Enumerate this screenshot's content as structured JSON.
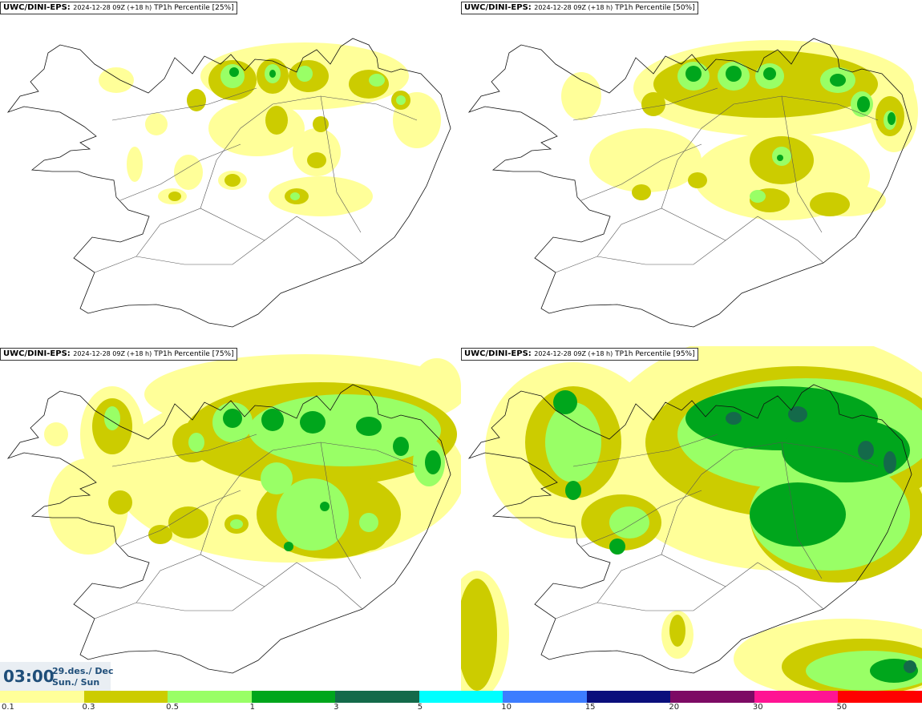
{
  "panels": [
    {
      "model": "UWC/DINI-EPS",
      "run": "2024-12-28 09Z (+18 h)",
      "param": "TP1h Percentile [25%]",
      "percentile": 25
    },
    {
      "model": "UWC/DINI-EPS",
      "run": "2024-12-28 09Z (+18 h)",
      "param": "TP1h Percentile [50%]",
      "percentile": 50
    },
    {
      "model": "UWC/DINI-EPS",
      "run": "2024-12-28 09Z (+18 h)",
      "param": "TP1h Percentile [75%]",
      "percentile": 75
    },
    {
      "model": "UWC/DINI-EPS",
      "run": "2024-12-28 09Z (+18 h)",
      "param": "TP1h Percentile [95%]",
      "percentile": 95
    }
  ],
  "valid_time": {
    "time": "03:00",
    "date_line1": "29.des./ Dec",
    "date_line2": "Sun./ Sun"
  },
  "legend": {
    "labels": [
      "0.1",
      "0.3",
      "0.5",
      "1",
      "3",
      "5",
      "10",
      "15",
      "20",
      "30",
      "50"
    ],
    "colors": [
      "#ffff99",
      "#cccc00",
      "#99ff66",
      "#00a61c",
      "#146a4a",
      "#00ffff",
      "#3d7dff",
      "#0a0f7c",
      "#7d0a64",
      "#ff1493",
      "#ff0000"
    ]
  },
  "colors": {
    "p01": "#ffff99",
    "p03": "#cccc00",
    "p05": "#99ff66",
    "p1": "#00a61c",
    "p3": "#146a4a",
    "coast": "#111111",
    "roads": "#555555",
    "time_text": "#1f4e79"
  }
}
